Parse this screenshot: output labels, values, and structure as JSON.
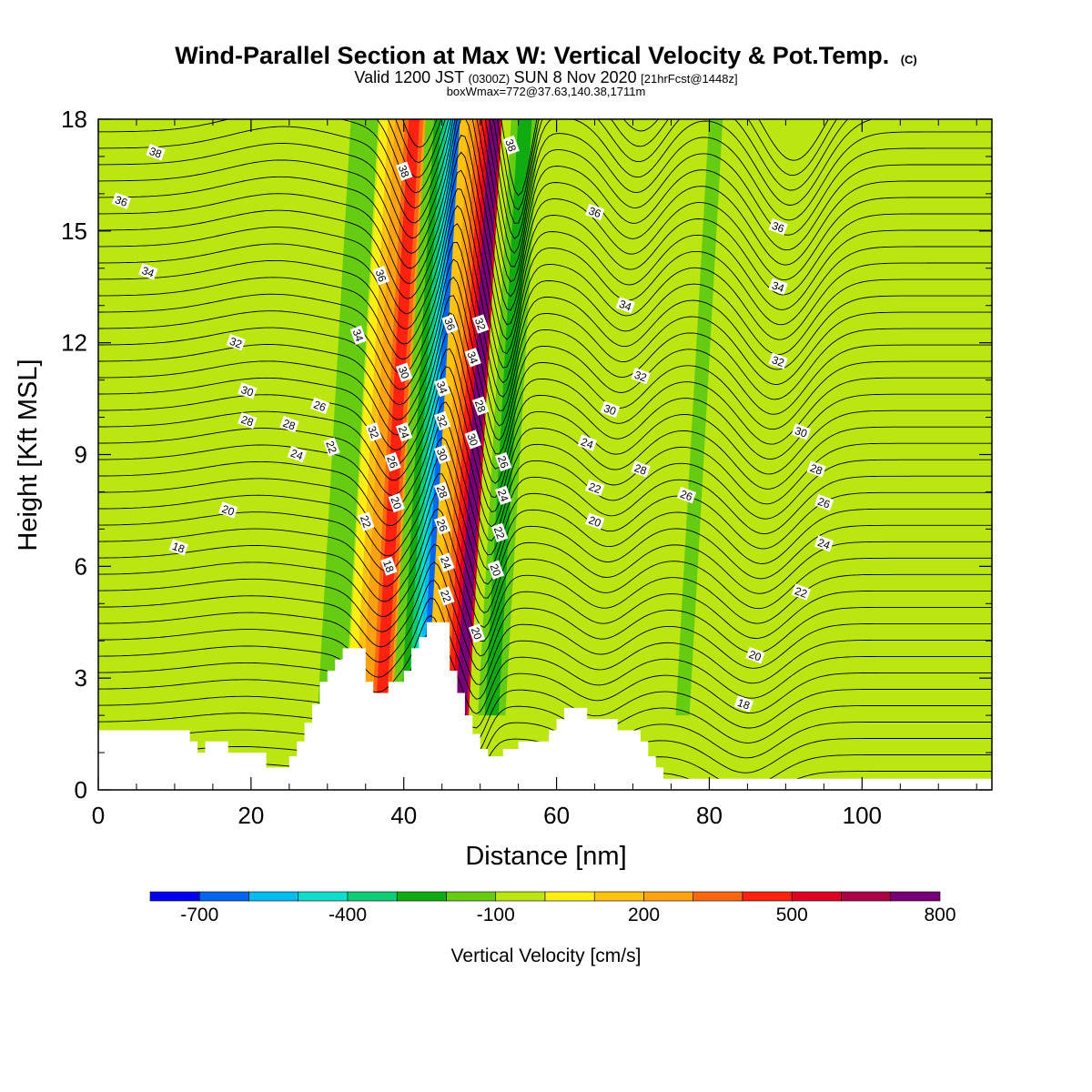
{
  "header": {
    "title_main": "Wind-Parallel Section at Max W: Vertical Velocity & Pot.Temp.",
    "title_mark": "(C)",
    "sub_a": "Valid 1200 JST",
    "sub_b": "(0300Z)",
    "sub_c": "SUN 8 Nov 2020",
    "sub_d": "[21hrFcst@1448z]",
    "box_line": "boxWmax=772@37.63,140.38,1711m"
  },
  "colorbar": {
    "label": "Vertical Velocity [cm/s]",
    "colors": [
      "#0000ee",
      "#0066ee",
      "#00bbee",
      "#11ddcc",
      "#11cc77",
      "#11aa11",
      "#66cc11",
      "#bbe611",
      "#ffee11",
      "#ffc211",
      "#ffa211",
      "#ff6611",
      "#ff2211",
      "#dd0022",
      "#aa0044",
      "#770077"
    ],
    "tick_labels": [
      "-700",
      "-400",
      "-100",
      "200",
      "500",
      "800"
    ]
  },
  "chart_data": {
    "type": "heatmap",
    "xlabel": "Distance [nm]",
    "ylabel": "Height [Kft MSL]",
    "xlim": [
      0,
      117
    ],
    "ylim": [
      0,
      18
    ],
    "xticks": [
      "0",
      "20",
      "40",
      "60",
      "80",
      "100"
    ],
    "yticks": [
      "0",
      "3",
      "6",
      "9",
      "12",
      "15",
      "18"
    ],
    "color_variable": "Vertical Velocity [cm/s]",
    "contour_variable": "Potential Temperature",
    "terrain_kft": [
      [
        0,
        1.6
      ],
      [
        12,
        1.6
      ],
      [
        12,
        1.3
      ],
      [
        13,
        1.3
      ],
      [
        13,
        1.0
      ],
      [
        14,
        1.0
      ],
      [
        14,
        1.3
      ],
      [
        17,
        1.3
      ],
      [
        17,
        1.0
      ],
      [
        22,
        1.0
      ],
      [
        22,
        0.6
      ],
      [
        25,
        0.6
      ],
      [
        25,
        0.9
      ],
      [
        26,
        0.9
      ],
      [
        26,
        1.3
      ],
      [
        27,
        1.3
      ],
      [
        27,
        1.8
      ],
      [
        28,
        1.8
      ],
      [
        28,
        2.3
      ],
      [
        29,
        2.3
      ],
      [
        29,
        2.9
      ],
      [
        30,
        2.9
      ],
      [
        30,
        3.2
      ],
      [
        31,
        3.2
      ],
      [
        31,
        3.5
      ],
      [
        32,
        3.5
      ],
      [
        32,
        3.8
      ],
      [
        35,
        3.8
      ],
      [
        35,
        2.9
      ],
      [
        36,
        2.9
      ],
      [
        36,
        2.6
      ],
      [
        38,
        2.6
      ],
      [
        38,
        2.9
      ],
      [
        40,
        2.9
      ],
      [
        40,
        3.2
      ],
      [
        41,
        3.2
      ],
      [
        41,
        3.8
      ],
      [
        42,
        3.8
      ],
      [
        42,
        4.1
      ],
      [
        43,
        4.1
      ],
      [
        43,
        4.5
      ],
      [
        46,
        4.5
      ],
      [
        46,
        3.2
      ],
      [
        47,
        3.2
      ],
      [
        47,
        2.6
      ],
      [
        48,
        2.6
      ],
      [
        48,
        2.0
      ],
      [
        49,
        2.0
      ],
      [
        49,
        1.5
      ],
      [
        50,
        1.5
      ],
      [
        50,
        1.1
      ],
      [
        51,
        1.1
      ],
      [
        51,
        0.9
      ],
      [
        53,
        0.9
      ],
      [
        53,
        1.1
      ],
      [
        55,
        1.1
      ],
      [
        55,
        1.3
      ],
      [
        59,
        1.3
      ],
      [
        59,
        1.6
      ],
      [
        60,
        1.6
      ],
      [
        60,
        1.9
      ],
      [
        61,
        1.9
      ],
      [
        61,
        2.2
      ],
      [
        64,
        2.2
      ],
      [
        64,
        1.9
      ],
      [
        68,
        1.9
      ],
      [
        68,
        1.6
      ],
      [
        71,
        1.6
      ],
      [
        71,
        1.3
      ],
      [
        72,
        1.3
      ],
      [
        72,
        0.9
      ],
      [
        73,
        0.9
      ],
      [
        73,
        0.6
      ],
      [
        74,
        0.6
      ],
      [
        74,
        0.3
      ],
      [
        117,
        0.3
      ],
      [
        117,
        0
      ]
    ],
    "w_bands": [
      {
        "x": 32,
        "w": -200
      },
      {
        "x": 38.5,
        "w": 400
      },
      {
        "x": 44.5,
        "w": -700
      },
      {
        "x": 49,
        "w": 700
      },
      {
        "x": 53,
        "w": -250
      },
      {
        "x": 66,
        "w": -100
      },
      {
        "x": 78,
        "w": -150
      },
      {
        "x": 88,
        "w": -100
      }
    ],
    "theta_contour_labels": [
      {
        "text": "38",
        "x": 7.5,
        "y": 17.1
      },
      {
        "text": "36",
        "x": 3,
        "y": 15.8
      },
      {
        "text": "34",
        "x": 6.5,
        "y": 13.9
      },
      {
        "text": "32",
        "x": 18,
        "y": 12
      },
      {
        "text": "30",
        "x": 19.5,
        "y": 10.7
      },
      {
        "text": "28",
        "x": 19.5,
        "y": 9.9
      },
      {
        "text": "26",
        "x": 29,
        "y": 10.3
      },
      {
        "text": "28",
        "x": 25,
        "y": 9.8
      },
      {
        "text": "24",
        "x": 26,
        "y": 9
      },
      {
        "text": "22",
        "x": 30.5,
        "y": 9.2
      },
      {
        "text": "20",
        "x": 17,
        "y": 7.5
      },
      {
        "text": "18",
        "x": 10.5,
        "y": 6.5
      },
      {
        "text": "38",
        "x": 40,
        "y": 16.6
      },
      {
        "text": "36",
        "x": 37,
        "y": 13.8
      },
      {
        "text": "34",
        "x": 34,
        "y": 12.2
      },
      {
        "text": "32",
        "x": 36,
        "y": 9.6
      },
      {
        "text": "30",
        "x": 40,
        "y": 11.2
      },
      {
        "text": "24",
        "x": 40,
        "y": 9.6
      },
      {
        "text": "26",
        "x": 38.5,
        "y": 8.8
      },
      {
        "text": "20",
        "x": 39,
        "y": 7.7
      },
      {
        "text": "22",
        "x": 35,
        "y": 7.2
      },
      {
        "text": "18",
        "x": 38,
        "y": 6
      },
      {
        "text": "36",
        "x": 46,
        "y": 12.5
      },
      {
        "text": "34",
        "x": 45,
        "y": 10.8
      },
      {
        "text": "32",
        "x": 45,
        "y": 9.9
      },
      {
        "text": "30",
        "x": 45,
        "y": 9
      },
      {
        "text": "28",
        "x": 45,
        "y": 8
      },
      {
        "text": "26",
        "x": 45,
        "y": 7.1
      },
      {
        "text": "24",
        "x": 45.5,
        "y": 6.1
      },
      {
        "text": "22",
        "x": 45.5,
        "y": 5.2
      },
      {
        "text": "32",
        "x": 50,
        "y": 12.5
      },
      {
        "text": "34",
        "x": 49,
        "y": 11.6
      },
      {
        "text": "28",
        "x": 50,
        "y": 10.3
      },
      {
        "text": "30",
        "x": 49,
        "y": 9.4
      },
      {
        "text": "26",
        "x": 53,
        "y": 8.8
      },
      {
        "text": "24",
        "x": 53,
        "y": 7.9
      },
      {
        "text": "22",
        "x": 52.5,
        "y": 6.9
      },
      {
        "text": "20",
        "x": 52,
        "y": 5.9
      },
      {
        "text": "20",
        "x": 49.5,
        "y": 4.2
      },
      {
        "text": "38",
        "x": 54,
        "y": 17.3
      },
      {
        "text": "36",
        "x": 65,
        "y": 15.5
      },
      {
        "text": "34",
        "x": 69,
        "y": 13
      },
      {
        "text": "32",
        "x": 71,
        "y": 11.1
      },
      {
        "text": "30",
        "x": 67,
        "y": 10.2
      },
      {
        "text": "24",
        "x": 64,
        "y": 9.3
      },
      {
        "text": "22",
        "x": 65,
        "y": 8.1
      },
      {
        "text": "20",
        "x": 65,
        "y": 7.2
      },
      {
        "text": "28",
        "x": 71,
        "y": 8.6
      },
      {
        "text": "26",
        "x": 77,
        "y": 7.9
      },
      {
        "text": "36",
        "x": 89,
        "y": 15.1
      },
      {
        "text": "34",
        "x": 89,
        "y": 13.5
      },
      {
        "text": "32",
        "x": 89,
        "y": 11.5
      },
      {
        "text": "30",
        "x": 92,
        "y": 9.6
      },
      {
        "text": "28",
        "x": 94,
        "y": 8.6
      },
      {
        "text": "26",
        "x": 95,
        "y": 7.7
      },
      {
        "text": "24",
        "x": 95,
        "y": 6.6
      },
      {
        "text": "22",
        "x": 92,
        "y": 5.3
      },
      {
        "text": "20",
        "x": 86,
        "y": 3.6
      },
      {
        "text": "18",
        "x": 84.5,
        "y": 2.3
      }
    ]
  }
}
